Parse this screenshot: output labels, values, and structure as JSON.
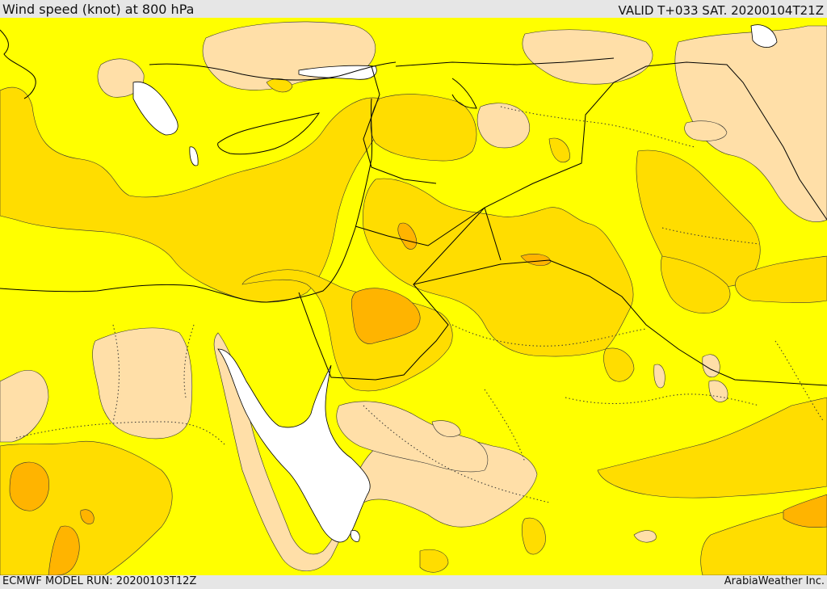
{
  "header": {
    "title": "Wind speed (knot) at 800 hPa",
    "valid": "VALID T+033 SAT. 20200104T21Z"
  },
  "footer": {
    "model_run": "ECMWF MODEL RUN: 20200103T12Z",
    "credit": "ArabiaWeather Inc."
  },
  "map": {
    "palette": {
      "calm": "#ffdfa8",
      "low": "#ffff00",
      "medium": "#ffdd00",
      "high": "#ffb400",
      "water": "#ffffff",
      "lines": "#000000"
    }
  }
}
